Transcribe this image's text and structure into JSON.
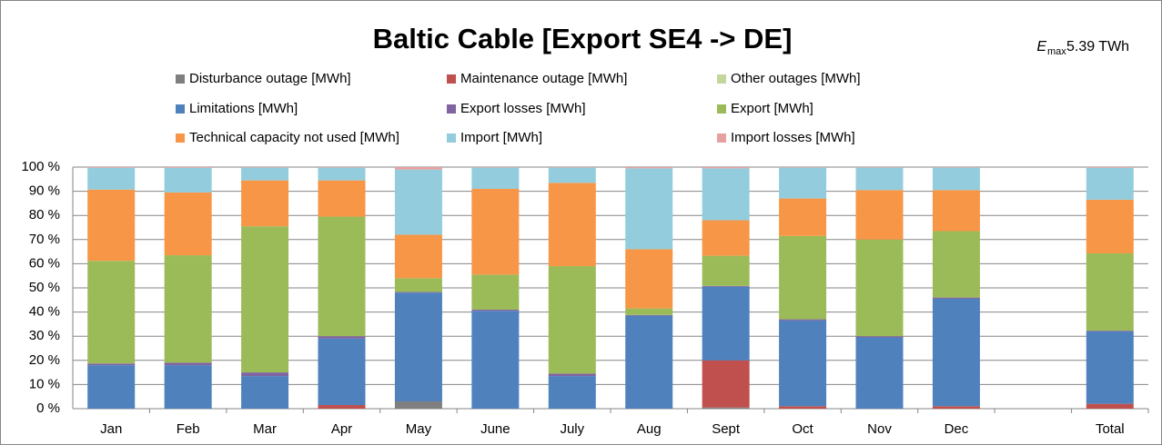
{
  "chart_data": {
    "type": "stacked_bar",
    "title": "Baltic Cable [Export SE4 -> DE]",
    "annotations": [
      "E",
      "max",
      "5.39 TWh"
    ],
    "categories": [
      "Jan",
      "Feb",
      "Mar",
      "Apr",
      "May",
      "June",
      "July",
      "Aug",
      "Sept",
      "Oct",
      "Nov",
      "Dec",
      null,
      "Total"
    ],
    "series": [
      {
        "name": "Disturbance outage [MWh]",
        "color": "#7f7f7f",
        "values": [
          0,
          0,
          0,
          0,
          3,
          0,
          0,
          0,
          0.5,
          0,
          0,
          0,
          null,
          0
        ]
      },
      {
        "name": "Maintenance outage [MWh]",
        "color": "#c0504d",
        "values": [
          0,
          0,
          0,
          1.5,
          0,
          0,
          0,
          0,
          19.5,
          1,
          0,
          1,
          null,
          2
        ]
      },
      {
        "name": "Other outages [MWh]",
        "color": "#c3d69b",
        "values": [
          0,
          0,
          0,
          0,
          0,
          0,
          0,
          0,
          0,
          0,
          0,
          0,
          null,
          0
        ]
      },
      {
        "name": "Limitations [MWh]",
        "color": "#4f81bd",
        "values": [
          18,
          18,
          13.5,
          27.5,
          45,
          40.5,
          13.5,
          38.5,
          30.5,
          35.5,
          29.5,
          44.5,
          null,
          30
        ]
      },
      {
        "name": "Export losses [MWh]",
        "color": "#8064a2",
        "values": [
          0.7,
          1,
          1.5,
          1,
          0.3,
          0.5,
          1,
          0.3,
          0.3,
          0.5,
          0.5,
          0.5,
          null,
          0.3
        ]
      },
      {
        "name": "Export [MWh]",
        "color": "#9bbb59",
        "values": [
          42.5,
          44.5,
          60.5,
          49.5,
          5.7,
          14.5,
          44.5,
          2.7,
          12.5,
          34.5,
          40,
          27.5,
          null,
          32
        ]
      },
      {
        "name": "Technical capacity not used [MWh]",
        "color": "#f79646",
        "values": [
          29.5,
          26,
          19,
          15,
          18,
          35.5,
          34.5,
          24.5,
          14.7,
          15.5,
          20.5,
          17,
          null,
          22.2
        ]
      },
      {
        "name": "Import [MWh]",
        "color": "#93cddd",
        "values": [
          9,
          10.2,
          5.3,
          5.3,
          27,
          8.8,
          6.3,
          33.5,
          21.5,
          12.8,
          9.3,
          9.3,
          null,
          13.2
        ]
      },
      {
        "name": "Import losses [MWh]",
        "color": "#e6a0a0",
        "values": [
          0.3,
          0.3,
          0.2,
          0.2,
          1,
          0.2,
          0.2,
          0.5,
          0.5,
          0.2,
          0.2,
          0.2,
          null,
          0.3
        ]
      }
    ],
    "ylim": [
      0,
      100
    ],
    "yticks": [
      {
        "value": 0,
        "label": "0 %"
      },
      {
        "value": 10,
        "label": "10 %"
      },
      {
        "value": 20,
        "label": "20 %"
      },
      {
        "value": 30,
        "label": "30 %"
      },
      {
        "value": 40,
        "label": "40 %"
      },
      {
        "value": 50,
        "label": "50 %"
      },
      {
        "value": 60,
        "label": "60 %"
      },
      {
        "value": 70,
        "label": "70 %"
      },
      {
        "value": 80,
        "label": "80 %"
      },
      {
        "value": 90,
        "label": "90 %"
      },
      {
        "value": 100,
        "label": "100 %"
      }
    ],
    "grid": true
  }
}
